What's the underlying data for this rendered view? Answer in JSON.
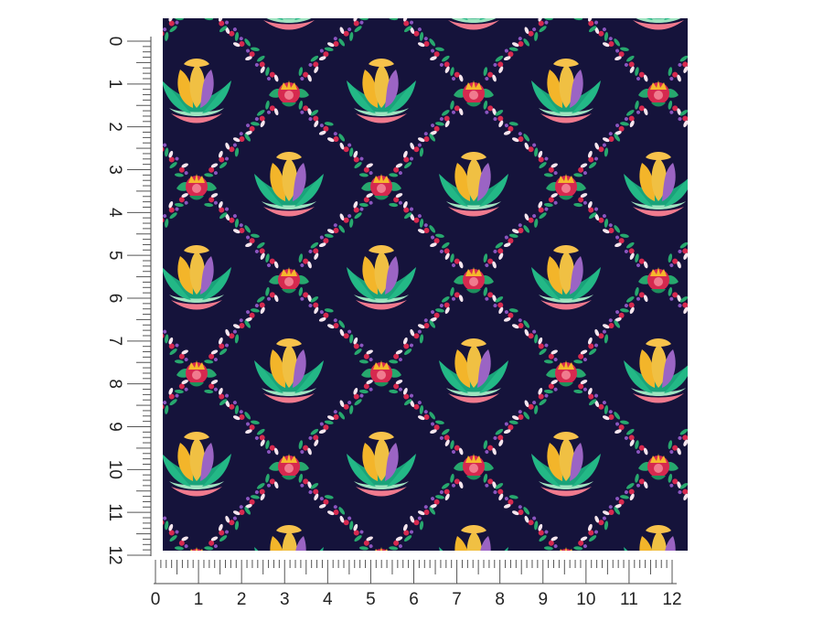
{
  "left_ruler": {
    "labels": [
      0,
      1,
      2,
      3,
      4,
      5,
      6,
      7,
      8,
      9,
      10,
      11,
      12
    ]
  },
  "bottom_ruler": {
    "labels": [
      0,
      1,
      2,
      3,
      4,
      5,
      6,
      7,
      8,
      9,
      10,
      11,
      12
    ]
  }
}
